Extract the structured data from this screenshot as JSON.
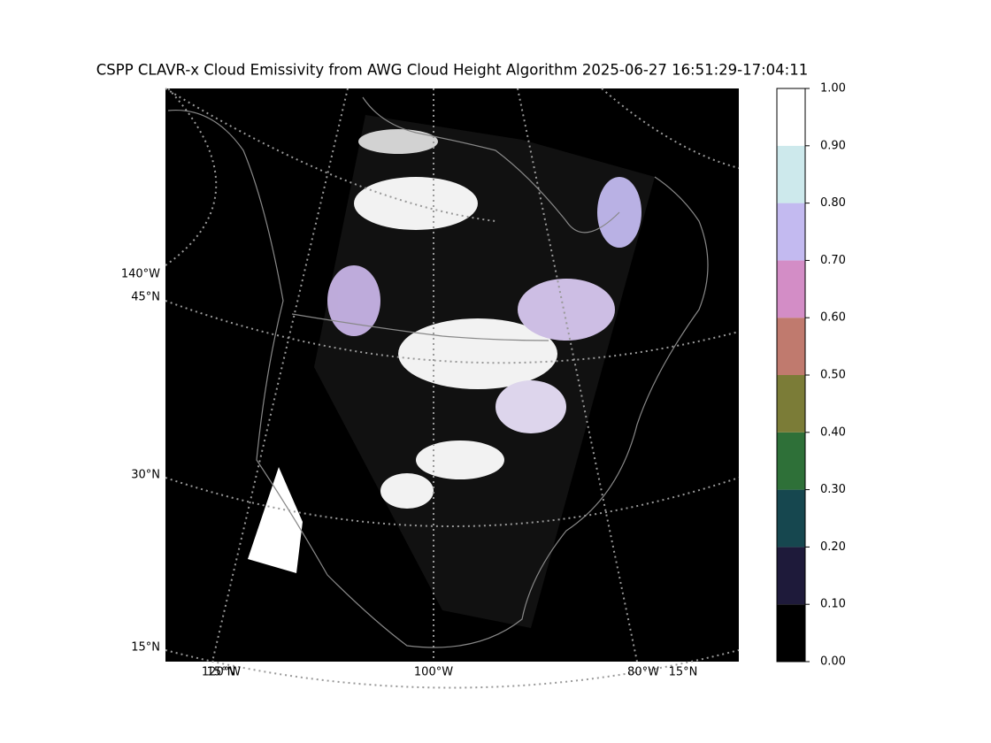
{
  "title": "CSPP CLAVR-x Cloud Emissivity from AWG Cloud Height Algorithm 2025-06-27 16:51:29-17:04:11",
  "map": {
    "lon_labels": [
      "140°W",
      "120°W",
      "15°N",
      "100°W",
      "80°W",
      "15°N"
    ],
    "lat_labels": [
      "45°N",
      "30°N",
      "15°N"
    ]
  },
  "colorbar": {
    "lim": [
      0,
      1
    ],
    "colors": [
      "#000000",
      "#1e1a3a",
      "#16474f",
      "#2e7038",
      "#7b7c37",
      "#c07a6e",
      "#d38dc6",
      "#c3baf0",
      "#cde9ec",
      "#ffffff"
    ],
    "ticks": [
      {
        "value": 0,
        "label": "0.00"
      },
      {
        "value": 0.1,
        "label": "0.10"
      },
      {
        "value": 0.2,
        "label": "0.20"
      },
      {
        "value": 0.3,
        "label": "0.30"
      },
      {
        "value": 0.4,
        "label": "0.40"
      },
      {
        "value": 0.5,
        "label": "0.50"
      },
      {
        "value": 0.6,
        "label": "0.60"
      },
      {
        "value": 0.7,
        "label": "0.70"
      },
      {
        "value": 0.8,
        "label": "0.80"
      },
      {
        "value": 0.9,
        "label": "0.90"
      },
      {
        "value": 1,
        "label": "1.00"
      }
    ]
  }
}
